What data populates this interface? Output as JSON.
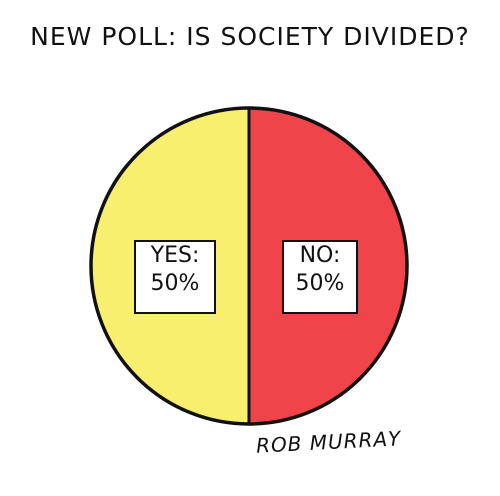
{
  "title": "NEW POLL: IS SOCIETY DIVIDED?",
  "chart_data": {
    "type": "pie",
    "categories": [
      "YES",
      "NO"
    ],
    "values": [
      50,
      50
    ],
    "colors": [
      "#f9ef6e",
      "#f0444a"
    ],
    "labels": [
      {
        "line1": "YES:",
        "line2": "50%"
      },
      {
        "line1": "NO:",
        "line2": "50%"
      }
    ]
  },
  "signature": "ROB MURRAY"
}
